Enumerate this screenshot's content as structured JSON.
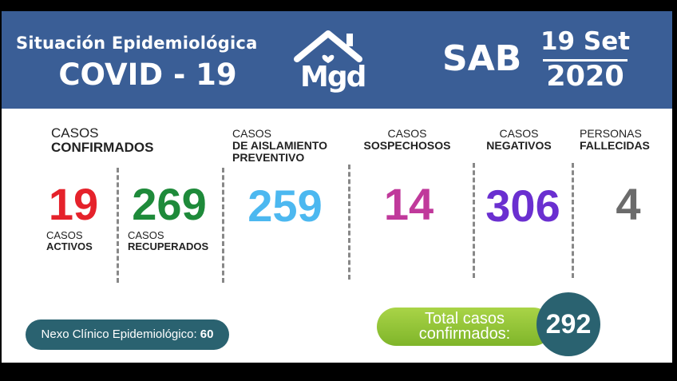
{
  "header": {
    "title_line1": "Situación Epidemiológica",
    "title_line2": "COVID - 19",
    "logo_text": "Mgd",
    "day": "SAB",
    "date_line1": "19 Set",
    "date_line2": "2020"
  },
  "stats": {
    "confirmados": {
      "label1": "CASOS",
      "label2": "CONFIRMADOS"
    },
    "activos": {
      "value": "19",
      "label1": "CASOS",
      "label2": "ACTIVOS",
      "color": "#e5222b"
    },
    "recuperados": {
      "value": "269",
      "label1": "CASOS",
      "label2": "RECUPERADOS",
      "color": "#1e8a3a"
    },
    "aislamiento": {
      "value": "259",
      "label1": "CASOS",
      "label2": "DE AISLAMIENTO",
      "label3": "PREVENTIVO",
      "color": "#4cb8f0"
    },
    "sospechosos": {
      "value": "14",
      "label1": "CASOS",
      "label2": "SOSPECHOSOS",
      "color": "#c0399b"
    },
    "negativos": {
      "value": "306",
      "label1": "CASOS",
      "label2": "NEGATIVOS",
      "color": "#6a2fd0"
    },
    "fallecidas": {
      "value": "4",
      "label1": "PERSONAS",
      "label2": "FALLECIDAS",
      "color": "#6b6b6b"
    }
  },
  "footer": {
    "nexo_label": "Nexo Clínico Epidemiológico:",
    "nexo_value": "60",
    "total_label1": "Total casos",
    "total_label2": "confirmados:",
    "total_value": "292"
  },
  "colors": {
    "header_bg": "#3a5e96",
    "teal": "#2a6270",
    "green_pill": "#8cc63f"
  }
}
